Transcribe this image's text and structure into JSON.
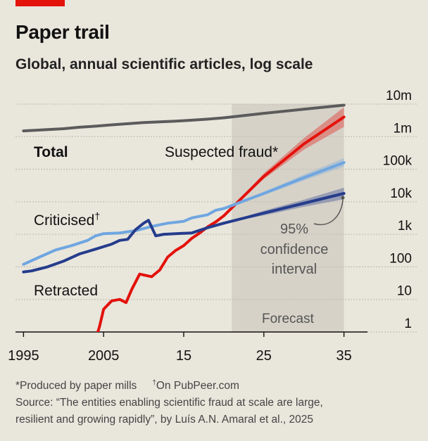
{
  "header": {
    "title": "Paper trail",
    "subtitle": "Global, annual scientific articles, log scale"
  },
  "colors": {
    "background": "#e9e6dc",
    "tag": "#e3120b",
    "total": "#5b5b5b",
    "suspected_fraud": "#e3120b",
    "criticised": "#6fa6e0",
    "retracted": "#253c8c",
    "forecast_band": "#d6d2c8"
  },
  "footnotes": {
    "note1": "*Produced by paper mills",
    "note2_mark": "†",
    "note2": "On PubPeer.com",
    "source_line1": "Source: “The entities enabling scientific fraud at scale are large,",
    "source_line2": "resilient and growing rapidly”, by Luís A.N. Amaral et al., 2025"
  },
  "chart_data": {
    "type": "line",
    "y_scale": "log",
    "ylim": [
      1,
      10000000
    ],
    "xlim": [
      1994,
      2036
    ],
    "x_tick_labels": [
      {
        "x": 1995,
        "label": "1995"
      },
      {
        "x": 2005,
        "label": "2005"
      },
      {
        "x": 2015,
        "label": "15"
      },
      {
        "x": 2025,
        "label": "25"
      },
      {
        "x": 2035,
        "label": "35"
      }
    ],
    "y_tick_labels": [
      {
        "y": 10000000,
        "label": "10m"
      },
      {
        "y": 1000000,
        "label": "1m"
      },
      {
        "y": 100000,
        "label": "100k"
      },
      {
        "y": 10000,
        "label": "10k"
      },
      {
        "y": 1000,
        "label": "1k"
      },
      {
        "y": 100,
        "label": "100"
      },
      {
        "y": 10,
        "label": "10"
      },
      {
        "y": 1,
        "label": "1"
      }
    ],
    "grid": true,
    "forecast": {
      "start": 2021,
      "end": 2035,
      "label": "Forecast"
    },
    "annotation": {
      "line1": "95%",
      "line2": "confidence",
      "line3": "interval"
    },
    "series": [
      {
        "key": "total",
        "name": "Total",
        "data": [
          [
            1995,
            1500000
          ],
          [
            1998,
            1650000
          ],
          [
            2000,
            1750000
          ],
          [
            2002,
            1950000
          ],
          [
            2004,
            2100000
          ],
          [
            2006,
            2300000
          ],
          [
            2008,
            2500000
          ],
          [
            2010,
            2700000
          ],
          [
            2012,
            2850000
          ],
          [
            2014,
            3000000
          ],
          [
            2016,
            3200000
          ],
          [
            2018,
            3450000
          ],
          [
            2020,
            3800000
          ]
        ],
        "forecast": [
          [
            2020,
            3800000
          ],
          [
            2025,
            5200000
          ],
          [
            2030,
            7000000
          ],
          [
            2035,
            9300000
          ]
        ],
        "ci": [
          [
            2020,
            3800000,
            3800000
          ],
          [
            2025,
            5000000,
            5400000
          ],
          [
            2030,
            6600000,
            7400000
          ],
          [
            2035,
            8800000,
            9800000
          ]
        ]
      },
      {
        "key": "suspected_fraud",
        "name": "Suspected fraud",
        "name_mark": "*",
        "data": [
          [
            2004,
            0.6
          ],
          [
            2004.5,
            1.5
          ],
          [
            2005,
            5
          ],
          [
            2006,
            9
          ],
          [
            2007,
            10
          ],
          [
            2007.8,
            8
          ],
          [
            2008.5,
            20
          ],
          [
            2009.5,
            60
          ],
          [
            2010.2,
            55
          ],
          [
            2011,
            50
          ],
          [
            2012,
            80
          ],
          [
            2013,
            200
          ],
          [
            2014,
            320
          ],
          [
            2015,
            450
          ],
          [
            2016,
            750
          ],
          [
            2017,
            1100
          ],
          [
            2018,
            1700
          ],
          [
            2019,
            2400
          ],
          [
            2020,
            3700
          ]
        ],
        "forecast": [
          [
            2020,
            3700
          ],
          [
            2025,
            60000
          ],
          [
            2030,
            600000
          ],
          [
            2035,
            4000000
          ]
        ],
        "ci": [
          [
            2020,
            3700,
            3700
          ],
          [
            2025,
            50000,
            75000
          ],
          [
            2030,
            400000,
            900000
          ],
          [
            2035,
            2000000,
            8000000
          ]
        ]
      },
      {
        "key": "criticised",
        "name": "Criticised",
        "name_mark": "†",
        "data": [
          [
            1995,
            120
          ],
          [
            1997,
            200
          ],
          [
            1999,
            330
          ],
          [
            2001,
            450
          ],
          [
            2003,
            650
          ],
          [
            2004,
            900
          ],
          [
            2005,
            1050
          ],
          [
            2007,
            1100
          ],
          [
            2009,
            1300
          ],
          [
            2011,
            1750
          ],
          [
            2013,
            2200
          ],
          [
            2015,
            2500
          ],
          [
            2016,
            3200
          ],
          [
            2018,
            4000
          ],
          [
            2019,
            5500
          ],
          [
            2020,
            6200
          ]
        ],
        "forecast": [
          [
            2020,
            6200
          ],
          [
            2025,
            18000
          ],
          [
            2030,
            55000
          ],
          [
            2035,
            160000
          ]
        ],
        "ci": [
          [
            2020,
            6200,
            6200
          ],
          [
            2025,
            16000,
            20000
          ],
          [
            2030,
            45000,
            68000
          ],
          [
            2035,
            120000,
            220000
          ]
        ]
      },
      {
        "key": "retracted",
        "name": "Retracted",
        "data": [
          [
            1995,
            70
          ],
          [
            1996,
            75
          ],
          [
            1998,
            100
          ],
          [
            2000,
            150
          ],
          [
            2002,
            250
          ],
          [
            2004,
            350
          ],
          [
            2006,
            500
          ],
          [
            2007,
            650
          ],
          [
            2008,
            700
          ],
          [
            2009,
            1400
          ],
          [
            2010,
            2200
          ],
          [
            2010.6,
            2700
          ],
          [
            2011.5,
            900
          ],
          [
            2012.5,
            1000
          ],
          [
            2014,
            1050
          ],
          [
            2016,
            1100
          ],
          [
            2018,
            1600
          ],
          [
            2020,
            2200
          ]
        ],
        "forecast": [
          [
            2020,
            2200
          ],
          [
            2025,
            4500
          ],
          [
            2030,
            9000
          ],
          [
            2035,
            18000
          ]
        ],
        "ci": [
          [
            2020,
            2200,
            2200
          ],
          [
            2025,
            3800,
            5300
          ],
          [
            2030,
            7000,
            11500
          ],
          [
            2035,
            12000,
            27000
          ]
        ]
      }
    ]
  }
}
